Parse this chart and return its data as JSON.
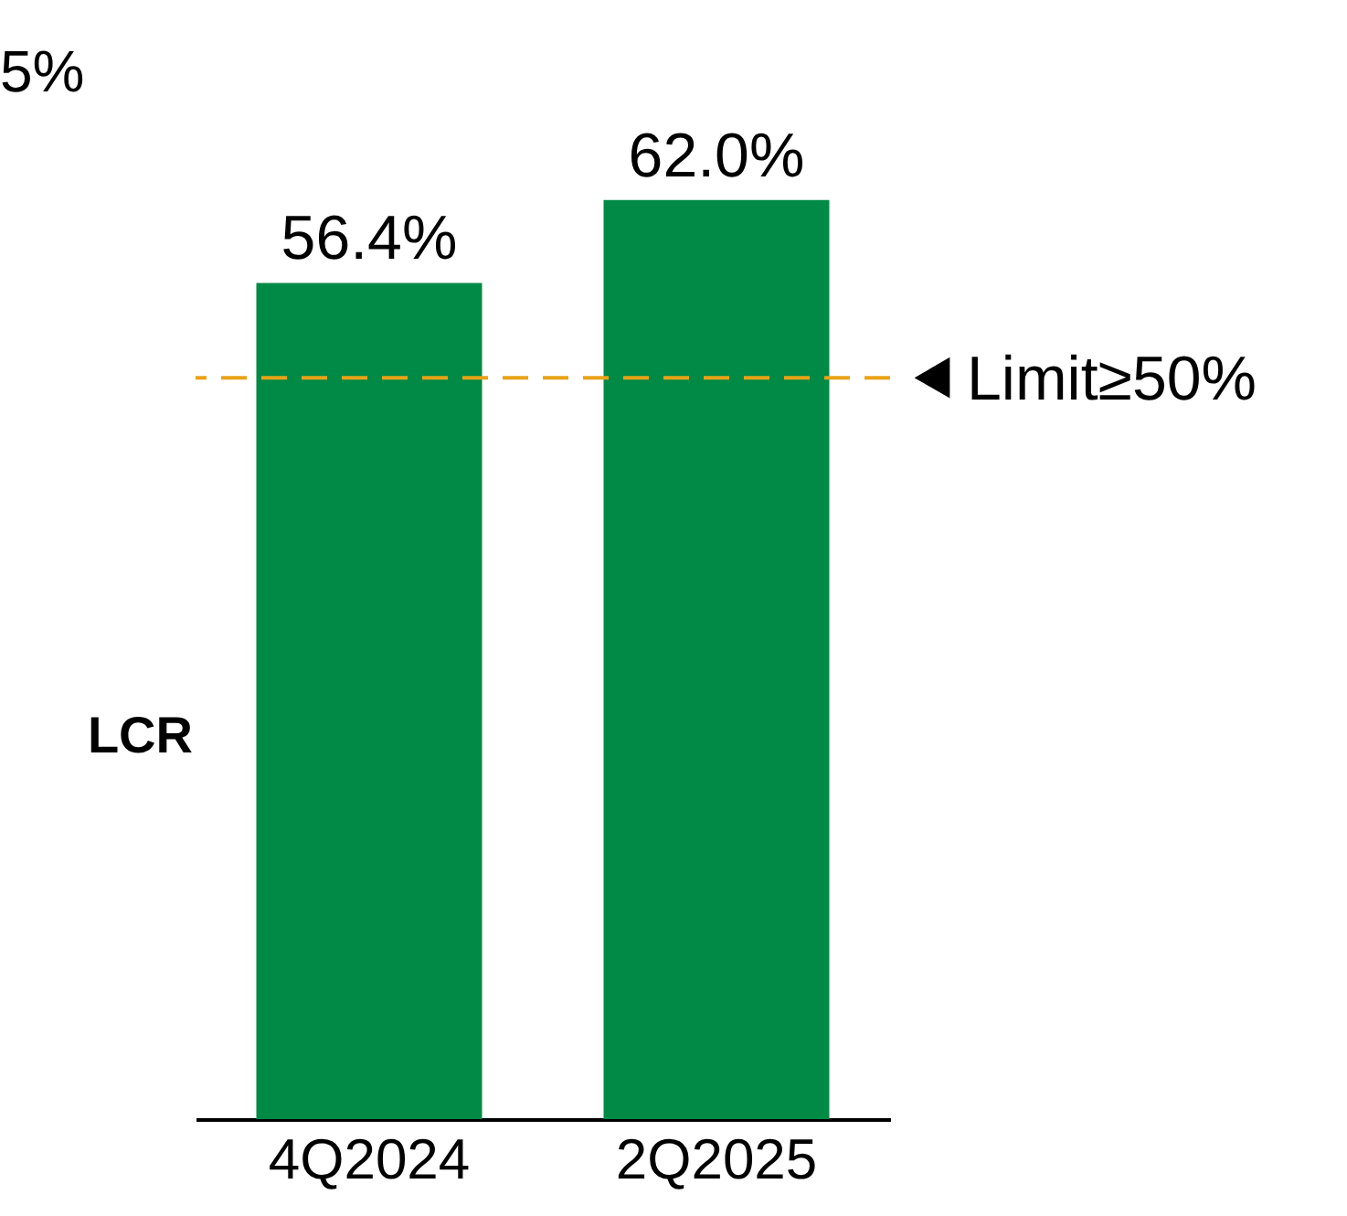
{
  "chart_data": {
    "type": "bar",
    "ylabel": "LCR",
    "categories": [
      "4Q2024",
      "2Q2025"
    ],
    "values": [
      56.4,
      62.0
    ],
    "value_labels": [
      "56.4%",
      "62.0%"
    ],
    "color": "#008a45",
    "ref_lines": [
      {
        "axis": "y",
        "value": 50,
        "label": "Limit≥50%",
        "color": "#e8a317",
        "line_style": "dashed"
      }
    ],
    "annotations": [
      "5%"
    ]
  }
}
